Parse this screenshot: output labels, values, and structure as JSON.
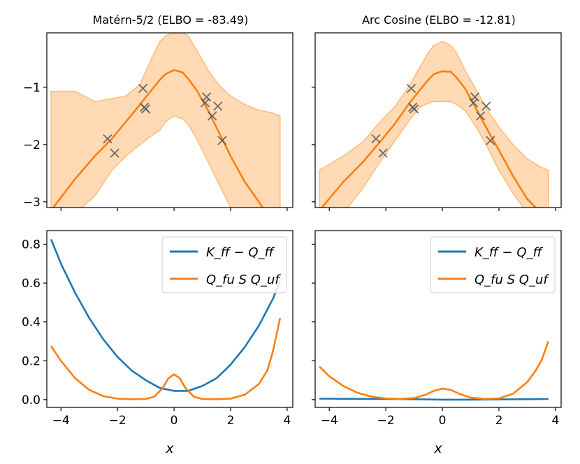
{
  "chart_data": [
    {
      "panel": "top-left",
      "type": "line",
      "title": "Matérn-5/2 (ELBO = -83.49)",
      "xlabel": "",
      "ylabel": "",
      "xlim": [
        -4.5,
        4.2
      ],
      "ylim": [
        -3.1,
        -0.05
      ],
      "yticks": [
        -3,
        -2,
        -1
      ],
      "ytick_labels": [
        "−3",
        "−2",
        "−1"
      ],
      "xticks": [
        -4,
        -2,
        0,
        2,
        4
      ],
      "xtick_labels": [
        "",
        "",
        "",
        "",
        ""
      ],
      "series": [
        {
          "name": "posterior mean",
          "color": "#ff7f0e",
          "x": [
            -4.35,
            -3.5,
            -2.8,
            -2.2,
            -1.7,
            -1.2,
            -0.8,
            -0.5,
            -0.3,
            0,
            0.3,
            0.5,
            0.8,
            1.2,
            1.6,
            2.0,
            2.5,
            3.0,
            3.2
          ],
          "y": [
            -3.15,
            -2.6,
            -2.2,
            -1.9,
            -1.6,
            -1.3,
            -1.05,
            -0.87,
            -0.77,
            -0.7,
            -0.74,
            -0.85,
            -1.05,
            -1.4,
            -1.8,
            -2.2,
            -2.65,
            -3.0,
            -3.15
          ]
        },
        {
          "name": "confidence band",
          "color": "#ffbb78",
          "kind": "band",
          "x": [
            -4.35,
            -3.5,
            -2.8,
            -2.2,
            -1.7,
            -1.2,
            -0.8,
            -0.5,
            -0.3,
            0,
            0.3,
            0.5,
            0.8,
            1.2,
            1.6,
            2.0,
            2.5,
            3.0,
            3.5,
            3.75
          ],
          "lower": [
            -3.2,
            -3.2,
            -2.9,
            -2.45,
            -2.2,
            -2.0,
            -1.85,
            -1.75,
            -1.6,
            -1.5,
            -1.55,
            -1.65,
            -1.9,
            -2.3,
            -2.7,
            -3.1,
            -3.2,
            -3.2,
            -3.2,
            -3.2
          ],
          "upper": [
            -1.07,
            -1.07,
            -1.25,
            -1.2,
            -1.15,
            -0.95,
            -0.5,
            -0.2,
            -0.1,
            -0.05,
            -0.05,
            -0.1,
            -0.35,
            -0.7,
            -0.97,
            -1.15,
            -1.3,
            -1.4,
            -1.45,
            -1.5
          ]
        },
        {
          "name": "observations",
          "kind": "scatter",
          "marker": "x",
          "color": "#555555",
          "x": [
            -2.35,
            -2.1,
            -1.1,
            -1.05,
            -1.0,
            1.1,
            1.15,
            1.35,
            1.55,
            1.7
          ],
          "y": [
            -1.9,
            -2.15,
            -1.02,
            -1.35,
            -1.38,
            -1.27,
            -1.17,
            -1.5,
            -1.33,
            -1.93
          ]
        }
      ]
    },
    {
      "panel": "top-right",
      "type": "line",
      "title": "Arc Cosine (ELBO = -12.81)",
      "xlabel": "",
      "ylabel": "",
      "xlim": [
        -4.5,
        4.2
      ],
      "ylim": [
        -3.1,
        -0.05
      ],
      "yticks": [
        -3,
        -2,
        -1
      ],
      "ytick_labels": [
        "",
        "",
        ""
      ],
      "xticks": [
        -4,
        -2,
        0,
        2,
        4
      ],
      "xtick_labels": [
        "",
        "",
        "",
        "",
        ""
      ],
      "series": [
        {
          "name": "posterior mean",
          "color": "#ff7f0e",
          "x": [
            -4.35,
            -3.5,
            -2.8,
            -2.2,
            -1.7,
            -1.2,
            -0.8,
            -0.5,
            -0.3,
            0,
            0.3,
            0.5,
            0.8,
            1.2,
            1.6,
            2.0,
            2.5,
            3.0,
            3.4
          ],
          "y": [
            -3.15,
            -2.65,
            -2.3,
            -1.95,
            -1.65,
            -1.3,
            -1.05,
            -0.87,
            -0.77,
            -0.72,
            -0.73,
            -0.83,
            -1.02,
            -1.38,
            -1.75,
            -2.1,
            -2.55,
            -2.95,
            -3.15
          ]
        },
        {
          "name": "confidence band",
          "color": "#ffbb78",
          "kind": "band",
          "x": [
            -4.35,
            -3.5,
            -2.8,
            -2.2,
            -1.7,
            -1.2,
            -0.8,
            -0.5,
            -0.3,
            0,
            0.3,
            0.5,
            0.8,
            1.2,
            1.6,
            2.0,
            2.5,
            3.0,
            3.5,
            3.75
          ],
          "lower": [
            -3.2,
            -3.2,
            -2.75,
            -2.3,
            -1.95,
            -1.6,
            -1.35,
            -1.28,
            -1.25,
            -1.25,
            -1.25,
            -1.3,
            -1.4,
            -1.7,
            -2.05,
            -2.45,
            -2.85,
            -3.2,
            -3.2,
            -3.2
          ],
          "upper": [
            -2.45,
            -2.2,
            -1.95,
            -1.6,
            -1.35,
            -1.0,
            -0.65,
            -0.4,
            -0.27,
            -0.2,
            -0.27,
            -0.4,
            -0.7,
            -1.05,
            -1.4,
            -1.7,
            -2.0,
            -2.25,
            -2.4,
            -2.45
          ]
        },
        {
          "name": "observations",
          "kind": "scatter",
          "marker": "x",
          "color": "#555555",
          "x": [
            -2.35,
            -2.1,
            -1.1,
            -1.05,
            -1.0,
            1.1,
            1.15,
            1.35,
            1.55,
            1.7
          ],
          "y": [
            -1.9,
            -2.15,
            -1.02,
            -1.35,
            -1.38,
            -1.27,
            -1.17,
            -1.5,
            -1.33,
            -1.93
          ]
        }
      ]
    },
    {
      "panel": "bottom-left",
      "type": "line",
      "title": "",
      "xlabel": "x",
      "ylabel": "",
      "xlim": [
        -4.5,
        4.2
      ],
      "ylim": [
        -0.04,
        0.87
      ],
      "yticks": [
        0.0,
        0.2,
        0.4,
        0.6,
        0.8
      ],
      "ytick_labels": [
        "0.0",
        "0.2",
        "0.4",
        "0.6",
        "0.8"
      ],
      "xticks": [
        -4,
        -2,
        0,
        2,
        4
      ],
      "xtick_labels": [
        "−4",
        "−2",
        "0",
        "2",
        "4"
      ],
      "legend": {
        "placement": "top-right",
        "entries": [
          "K_ff − Q_ff",
          "Q_fu S Q_uf"
        ]
      },
      "series": [
        {
          "name": "K_ff − Q_ff",
          "color": "#1f77b4",
          "x": [
            -4.35,
            -4.0,
            -3.5,
            -3.0,
            -2.5,
            -2.0,
            -1.5,
            -1.0,
            -0.5,
            0.0,
            0.5,
            1.0,
            1.5,
            2.0,
            2.5,
            3.0,
            3.5,
            3.75
          ],
          "y": [
            0.825,
            0.7,
            0.55,
            0.42,
            0.31,
            0.22,
            0.15,
            0.1,
            0.06,
            0.045,
            0.045,
            0.07,
            0.11,
            0.18,
            0.27,
            0.38,
            0.52,
            0.61
          ]
        },
        {
          "name": "Q_fu S Q_uf",
          "color": "#ff7f0e",
          "x": [
            -4.35,
            -4.0,
            -3.5,
            -3.0,
            -2.5,
            -2.0,
            -1.5,
            -1.0,
            -0.7,
            -0.4,
            -0.2,
            0.0,
            0.2,
            0.4,
            0.7,
            1.0,
            1.5,
            2.0,
            2.5,
            3.0,
            3.3,
            3.5,
            3.75
          ],
          "y": [
            0.275,
            0.2,
            0.11,
            0.05,
            0.018,
            0.005,
            0.002,
            0.003,
            0.015,
            0.06,
            0.11,
            0.13,
            0.11,
            0.06,
            0.015,
            0.003,
            0.002,
            0.005,
            0.025,
            0.08,
            0.15,
            0.25,
            0.42
          ]
        }
      ]
    },
    {
      "panel": "bottom-right",
      "type": "line",
      "title": "",
      "xlabel": "x",
      "ylabel": "",
      "xlim": [
        -4.5,
        4.2
      ],
      "ylim": [
        -0.04,
        0.87
      ],
      "yticks": [
        0.0,
        0.2,
        0.4,
        0.6,
        0.8
      ],
      "ytick_labels": [
        "",
        "",
        "",
        "",
        ""
      ],
      "xticks": [
        -4,
        -2,
        0,
        2,
        4
      ],
      "xtick_labels": [
        "−4",
        "−2",
        "0",
        "2",
        "4"
      ],
      "legend": {
        "placement": "top-right",
        "entries": [
          "K_ff − Q_ff",
          "Q_fu S Q_uf"
        ]
      },
      "series": [
        {
          "name": "K_ff − Q_ff",
          "color": "#1f77b4",
          "x": [
            -4.35,
            -3.0,
            -2.0,
            -1.0,
            0.0,
            1.0,
            2.0,
            3.0,
            3.75
          ],
          "y": [
            0.005,
            0.004,
            0.003,
            0.002,
            0.0,
            0.0,
            0.001,
            0.002,
            0.003
          ]
        },
        {
          "name": "Q_fu S Q_uf",
          "color": "#ff7f0e",
          "x": [
            -4.35,
            -4.0,
            -3.5,
            -3.0,
            -2.5,
            -2.0,
            -1.5,
            -1.0,
            -0.6,
            -0.3,
            0.0,
            0.3,
            0.6,
            1.0,
            1.5,
            2.0,
            2.5,
            3.0,
            3.3,
            3.5,
            3.75
          ],
          "y": [
            0.17,
            0.12,
            0.07,
            0.035,
            0.015,
            0.006,
            0.004,
            0.008,
            0.025,
            0.045,
            0.057,
            0.05,
            0.03,
            0.01,
            0.004,
            0.006,
            0.03,
            0.09,
            0.15,
            0.2,
            0.3
          ]
        }
      ]
    }
  ],
  "colors": {
    "blue": "#1f77b4",
    "orange": "#ff7f0e",
    "band": "#ffbb78",
    "marker": "#555555"
  }
}
